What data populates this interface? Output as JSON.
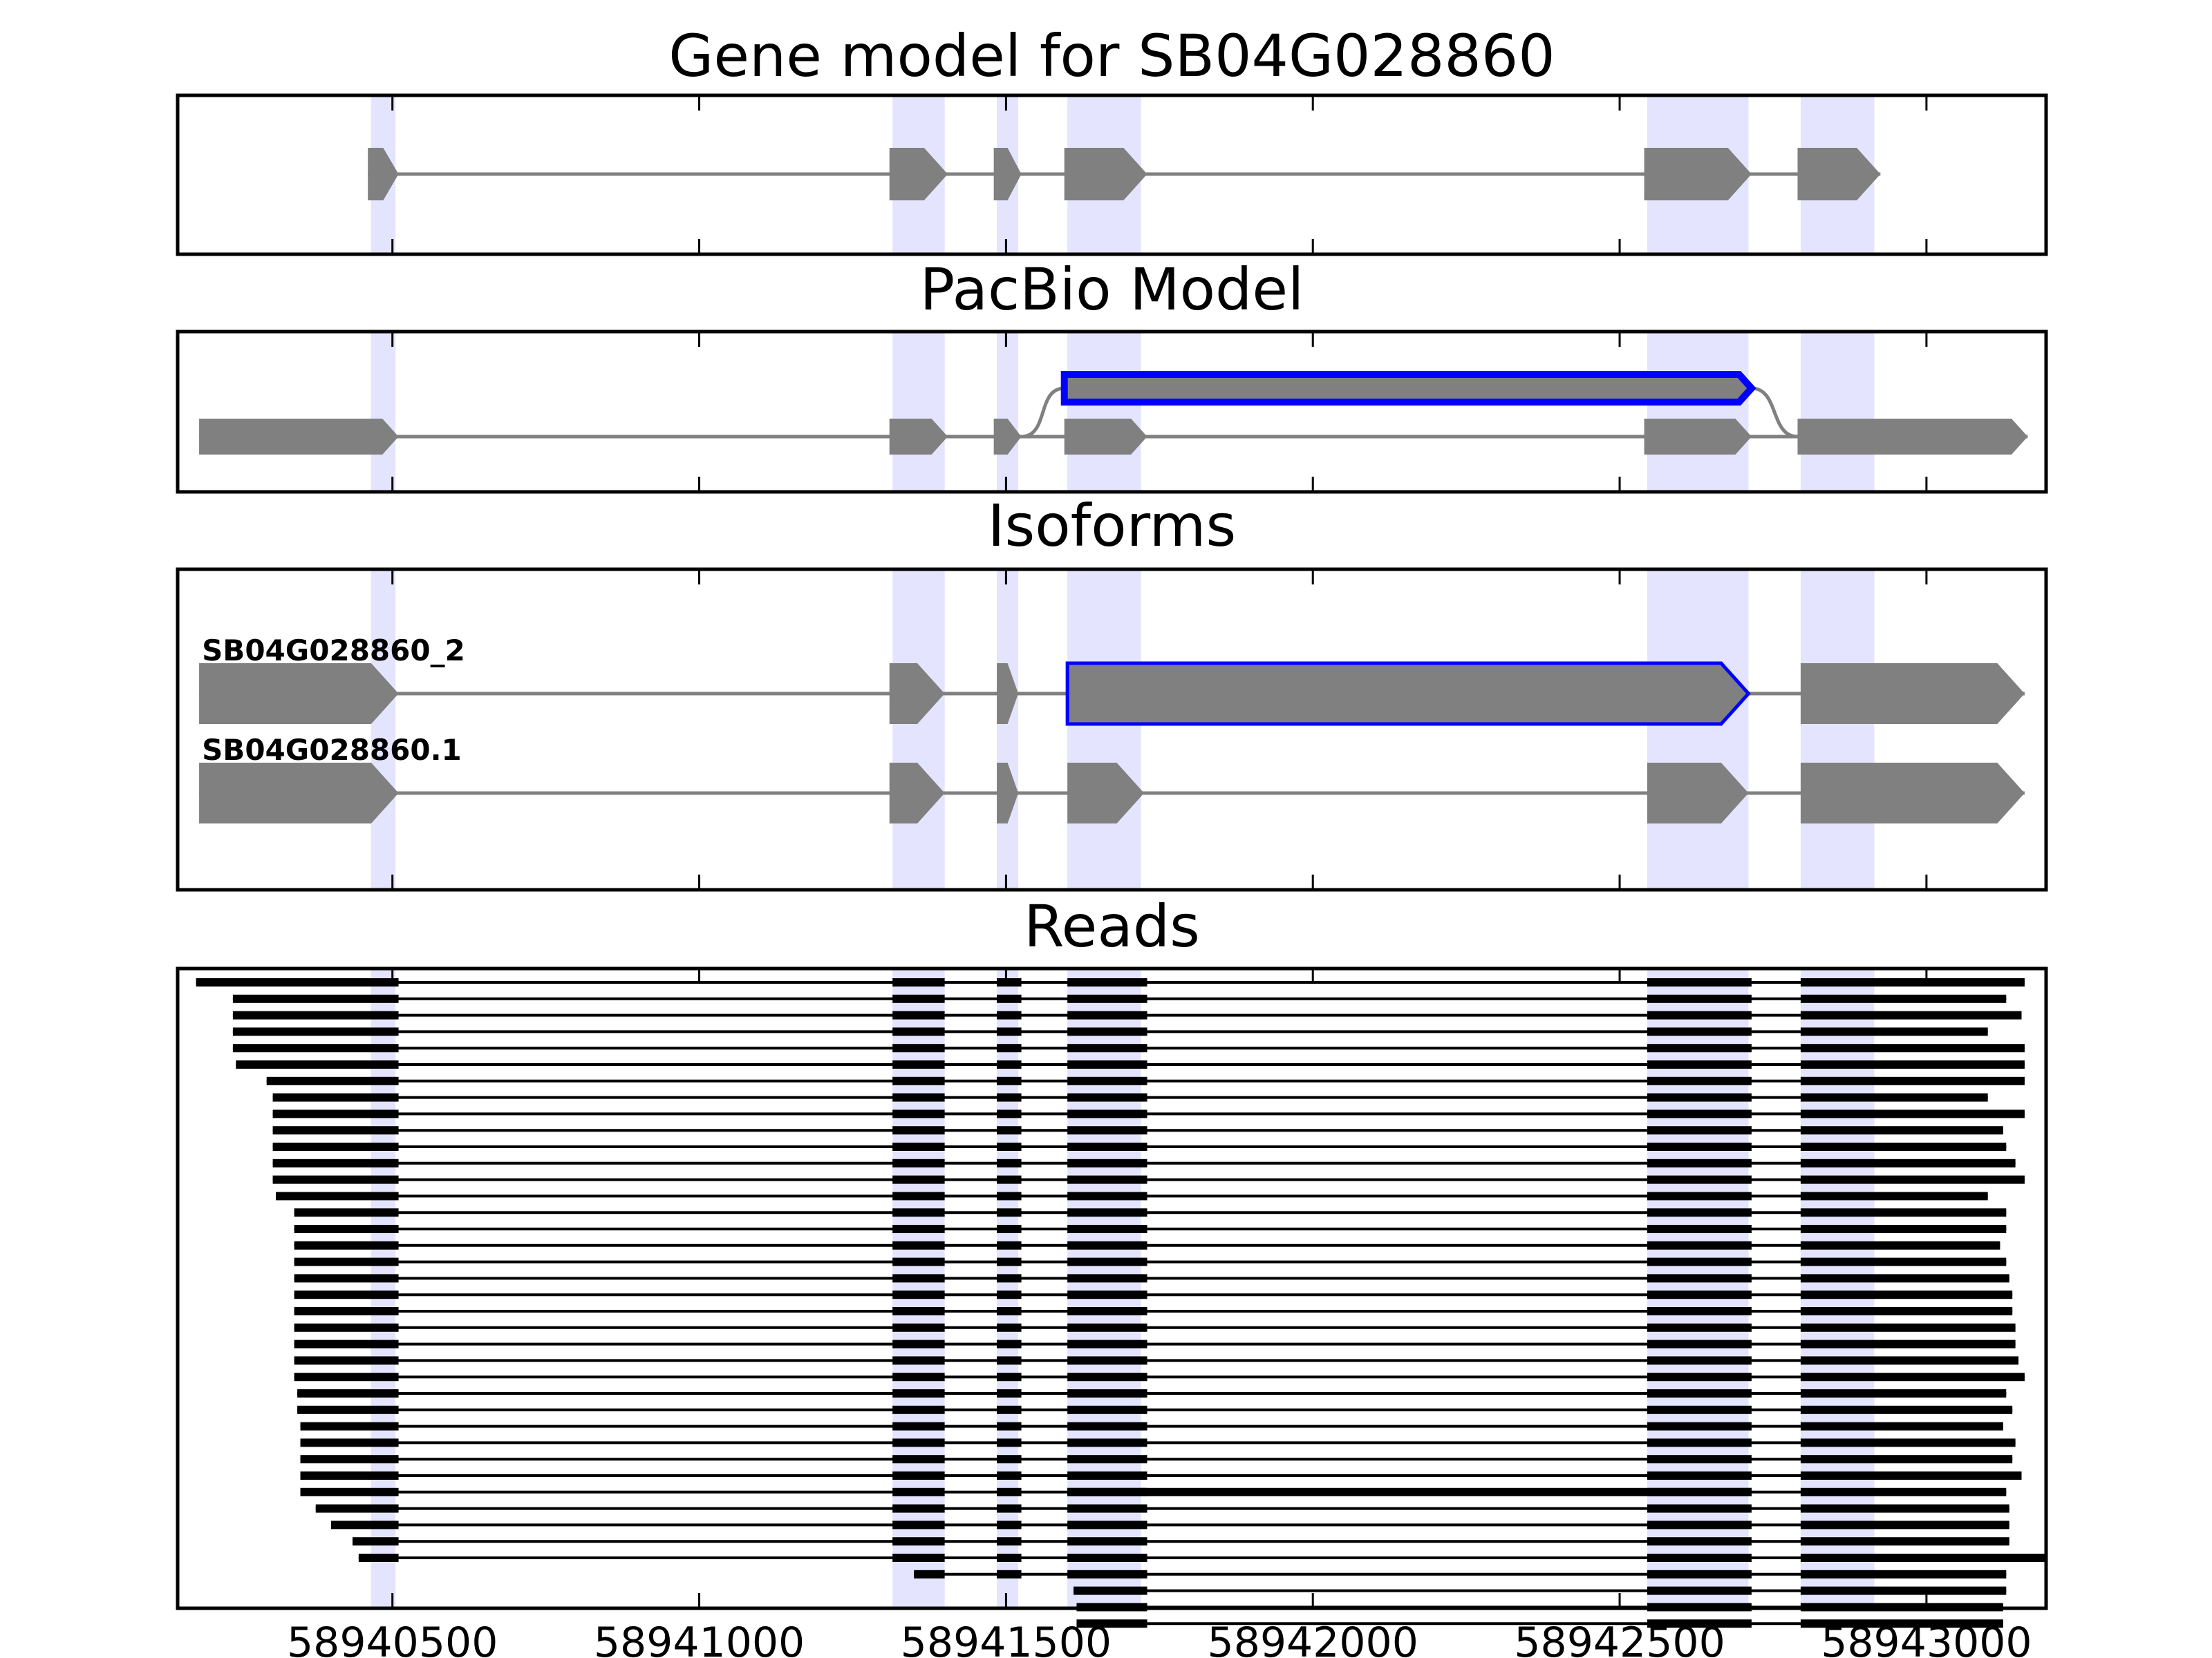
{
  "chart_data": {
    "type": "gene-structure",
    "x_range": [
      58940150,
      58943195
    ],
    "x_ticks": [
      58940500,
      58941000,
      58941500,
      58942000,
      58942500,
      58943000
    ],
    "colors": {
      "exon": "#808080",
      "intron": "#808080",
      "highlight": "#e4e4ff",
      "pacbio_outline": "#0000ff",
      "read": "#000000"
    },
    "highlight_regions": [
      [
        58940465,
        58940505
      ],
      [
        58941315,
        58941400
      ],
      [
        58941485,
        58941520
      ],
      [
        58941600,
        58941720
      ],
      [
        58942545,
        58942710
      ],
      [
        58942795,
        58942915
      ]
    ],
    "panels": [
      {
        "title": "Gene model for SB04G028860",
        "models": [
          {
            "name": "",
            "exons": [
              [
                58940460,
                58940510
              ],
              [
                58941310,
                58941405
              ],
              [
                58941480,
                58941525
              ],
              [
                58941595,
                58941730
              ],
              [
                58942540,
                58942715
              ],
              [
                58942790,
                58942925
              ]
            ]
          }
        ]
      },
      {
        "title": "PacBio Model",
        "models": [
          {
            "name": "",
            "exons": [
              [
                58940185,
                58940510
              ],
              [
                58941310,
                58941405
              ],
              [
                58941480,
                58941525
              ],
              [
                58941595,
                58941730
              ],
              [
                58942540,
                58942715
              ],
              [
                58942790,
                58943165
              ]
            ]
          },
          {
            "name": "",
            "retained_intron": true,
            "exons": [
              [
                58941595,
                58942715
              ]
            ]
          }
        ]
      },
      {
        "title": "Isoforms",
        "models": [
          {
            "name": "SB04G028860_2",
            "exons": [
              [
                58940185,
                58940510
              ],
              [
                58941310,
                58941400
              ],
              [
                58941485,
                58941520
              ],
              [
                58941600,
                58942710
              ],
              [
                58942795,
                58943160
              ]
            ]
          },
          {
            "name": "SB04G028860.1",
            "exons": [
              [
                58940185,
                58940510
              ],
              [
                58941310,
                58941400
              ],
              [
                58941485,
                58941520
              ],
              [
                58941600,
                58941725
              ],
              [
                58942545,
                58942710
              ],
              [
                58942795,
                58943160
              ]
            ]
          }
        ]
      },
      {
        "title": "Reads",
        "reads": [
          [
            58940180,
            58943160
          ],
          [
            58940240,
            58943130
          ],
          [
            58940240,
            58943155
          ],
          [
            58940240,
            58943100
          ],
          [
            58940240,
            58943160
          ],
          [
            58940245,
            58943160
          ],
          [
            58940295,
            58943160
          ],
          [
            58940305,
            58943100
          ],
          [
            58940305,
            58943160
          ],
          [
            58940305,
            58943125
          ],
          [
            58940305,
            58943130
          ],
          [
            58940305,
            58943145
          ],
          [
            58940305,
            58943160
          ],
          [
            58940310,
            58943100
          ],
          [
            58940340,
            58943130
          ],
          [
            58940340,
            58943130
          ],
          [
            58940340,
            58943120
          ],
          [
            58940340,
            58943130
          ],
          [
            58940340,
            58943135
          ],
          [
            58940340,
            58943140
          ],
          [
            58940340,
            58943140
          ],
          [
            58940340,
            58943145
          ],
          [
            58940340,
            58943145
          ],
          [
            58940340,
            58943150
          ],
          [
            58940340,
            58943160
          ],
          [
            58940345,
            58943130
          ],
          [
            58940345,
            58943140
          ],
          [
            58940350,
            58943125
          ],
          [
            58940350,
            58943145
          ],
          [
            58940350,
            58943140
          ],
          [
            58940350,
            58943155
          ],
          [
            58940350,
            58943130,
            "intron-retained"
          ],
          [
            58940375,
            58943135
          ],
          [
            58940400,
            58943135
          ],
          [
            58940435,
            58943135
          ],
          [
            58940445,
            58943195
          ],
          [
            58941350,
            58943130
          ],
          [
            58941610,
            58943130
          ],
          [
            58941615,
            58943125
          ],
          [
            58941615,
            58943125
          ]
        ]
      }
    ]
  }
}
